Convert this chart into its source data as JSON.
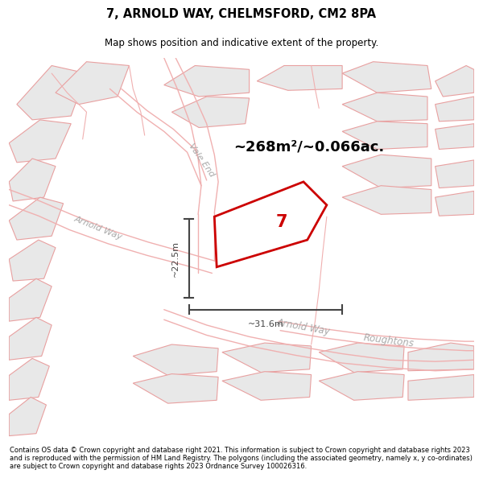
{
  "title_line1": "7, ARNOLD WAY, CHELMSFORD, CM2 8PA",
  "title_line2": "Map shows position and indicative extent of the property.",
  "area_text": "~268m²/~0.066ac.",
  "plot_number": "7",
  "dim_width": "~31.6m",
  "dim_height": "~22.5m",
  "footer_text": "Contains OS data © Crown copyright and database right 2021. This information is subject to Crown copyright and database rights 2023 and is reproduced with the permission of HM Land Registry. The polygons (including the associated geometry, namely x, y co-ordinates) are subject to Crown copyright and database rights 2023 Ordnance Survey 100026316.",
  "bg_color": "#f5f5f5",
  "block_fill": "#e8e8e8",
  "block_stroke": "#e8a0a0",
  "road_line_color": "#f0b0b0",
  "plot_color": "#cc0000",
  "street_label_color": "#aaaaaa",
  "dim_color": "#444444",
  "area_color": "#000000",
  "title_color": "#000000",
  "footer_color": "#000000"
}
